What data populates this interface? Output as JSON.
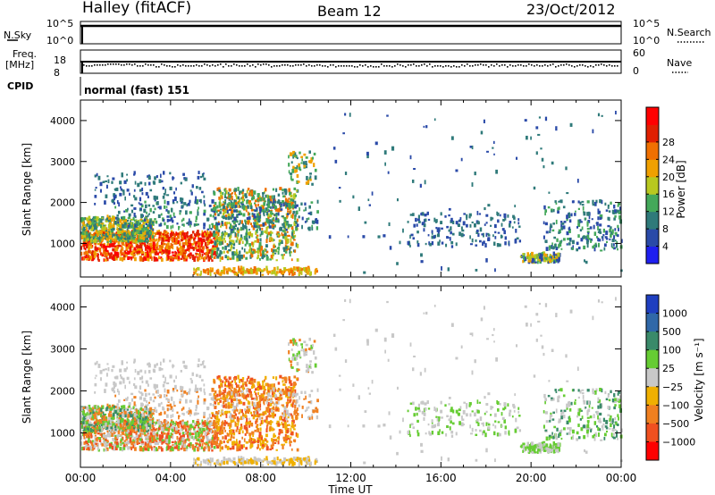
{
  "header": {
    "station": "Halley (fitACF)",
    "beam": "Beam 12",
    "date": "23/Oct/2012"
  },
  "top_panels": {
    "nsky_label": "N.Sky",
    "nsky_ticks": [
      "10^5",
      "10^0"
    ],
    "nsearch_label": "N.Search",
    "nsearch_ticks": [
      "10^5",
      "10^0"
    ],
    "freq_label_1": "Freq.",
    "freq_label_2": "[MHz]",
    "freq_ticks": [
      "18",
      "8"
    ],
    "nave_label": "Nave",
    "nave_ticks": [
      "60",
      "0"
    ],
    "cpid_label": "CPID",
    "cpid_text": "normal (fast) 151"
  },
  "chart_data": [
    {
      "type": "heatmap",
      "panel": "power",
      "ylabel": "Slant Range [km]",
      "xlabel": "Time UT",
      "x_ticks": [
        "00:00",
        "04:00",
        "08:00",
        "12:00",
        "16:00",
        "20:00",
        "00:00"
      ],
      "x_range_hours": [
        0,
        24
      ],
      "y_ticks": [
        1000,
        2000,
        3000,
        4000
      ],
      "y_range_km": [
        180,
        4500
      ],
      "colorbar_label": "Power [dB]",
      "colorbar_ticks": [
        "4",
        "8",
        "12",
        "16",
        "20",
        "24",
        "28"
      ],
      "colorbar_colors": [
        "#1f1ff0",
        "#2a4aa8",
        "#2f7a7a",
        "#44a85a",
        "#b8c820",
        "#f0a000",
        "#f07000",
        "#e02000",
        "#ff0000"
      ]
    },
    {
      "type": "heatmap",
      "panel": "velocity",
      "ylabel": "Slant Range [km]",
      "xlabel": "Time UT",
      "x_ticks": [
        "00:00",
        "04:00",
        "08:00",
        "12:00",
        "16:00",
        "20:00",
        "00:00"
      ],
      "x_range_hours": [
        0,
        24
      ],
      "y_ticks": [
        1000,
        2000,
        3000,
        4000
      ],
      "y_range_km": [
        180,
        4500
      ],
      "colorbar_label": "Velocity [m s⁻¹]",
      "colorbar_ticks": [
        "1000",
        "500",
        "100",
        "25",
        "−25",
        "−100",
        "−500",
        "−1000"
      ],
      "colorbar_colors": [
        "#1f3fc0",
        "#3068a8",
        "#3a8a6a",
        "#66cc33",
        "#c8c8c8",
        "#f0b000",
        "#f08020",
        "#f05020",
        "#ff0000"
      ]
    }
  ]
}
